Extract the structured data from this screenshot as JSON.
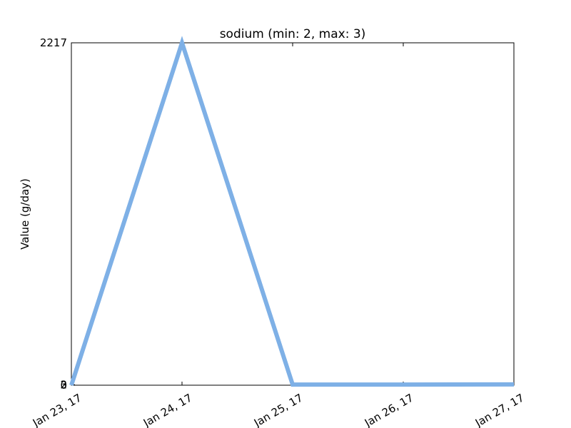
{
  "chart_data": {
    "type": "line",
    "title": "sodium (min: 2, max: 3)",
    "xlabel": "",
    "ylabel": "Value (g/day)",
    "x": [
      "2017-01-23",
      "2017-01-24",
      "2017-01-25",
      "2017-01-26",
      "2017-01-27"
    ],
    "x_tick_labels": [
      "Jan 23, 17",
      "Jan 24, 17",
      "Jan 25, 17",
      "Jan 26, 17",
      "Jan 27, 17"
    ],
    "y_tick_labels": [
      "0",
      "2",
      "3",
      "2217"
    ],
    "y_ticks": [
      0,
      2,
      3,
      2217
    ],
    "ylim": [
      0,
      2217
    ],
    "grid": false,
    "series": [
      {
        "values": [
          0,
          2217,
          4,
          4,
          5
        ],
        "color": "#7eb0e6"
      }
    ]
  }
}
